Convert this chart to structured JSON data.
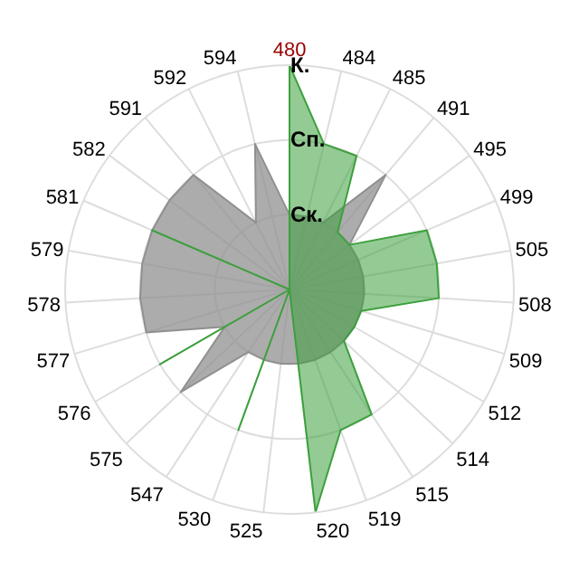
{
  "chart_data": {
    "type": "radar",
    "categories": [
      "480",
      "484",
      "485",
      "491",
      "495",
      "499",
      "505",
      "508",
      "509",
      "512",
      "514",
      "515",
      "519",
      "520",
      "525",
      "530",
      "547",
      "575",
      "576",
      "577",
      "578",
      "579",
      "581",
      "582",
      "591",
      "592",
      "594"
    ],
    "ylim": [
      0,
      3
    ],
    "yticks": [
      {
        "value": 1,
        "label": "Ск."
      },
      {
        "value": 2,
        "label": "Сп."
      },
      {
        "value": 3,
        "label": "К."
      }
    ],
    "grid": true,
    "marker": "none",
    "series": [
      {
        "color": "#909090",
        "values": [
          1,
          1,
          1,
          2,
          1,
          1,
          1,
          1,
          1,
          1,
          1,
          1,
          1,
          1,
          1,
          1,
          1,
          2,
          1,
          2,
          2,
          2,
          2,
          2,
          2,
          1,
          2
        ]
      },
      {
        "color": "#3ca03c",
        "values": [
          3,
          2,
          2,
          1,
          1,
          2,
          2,
          2,
          1,
          1,
          1,
          2,
          2,
          3,
          0,
          2,
          0,
          0,
          2,
          0,
          0,
          0,
          2,
          0,
          0,
          0,
          0
        ]
      }
    ]
  }
}
